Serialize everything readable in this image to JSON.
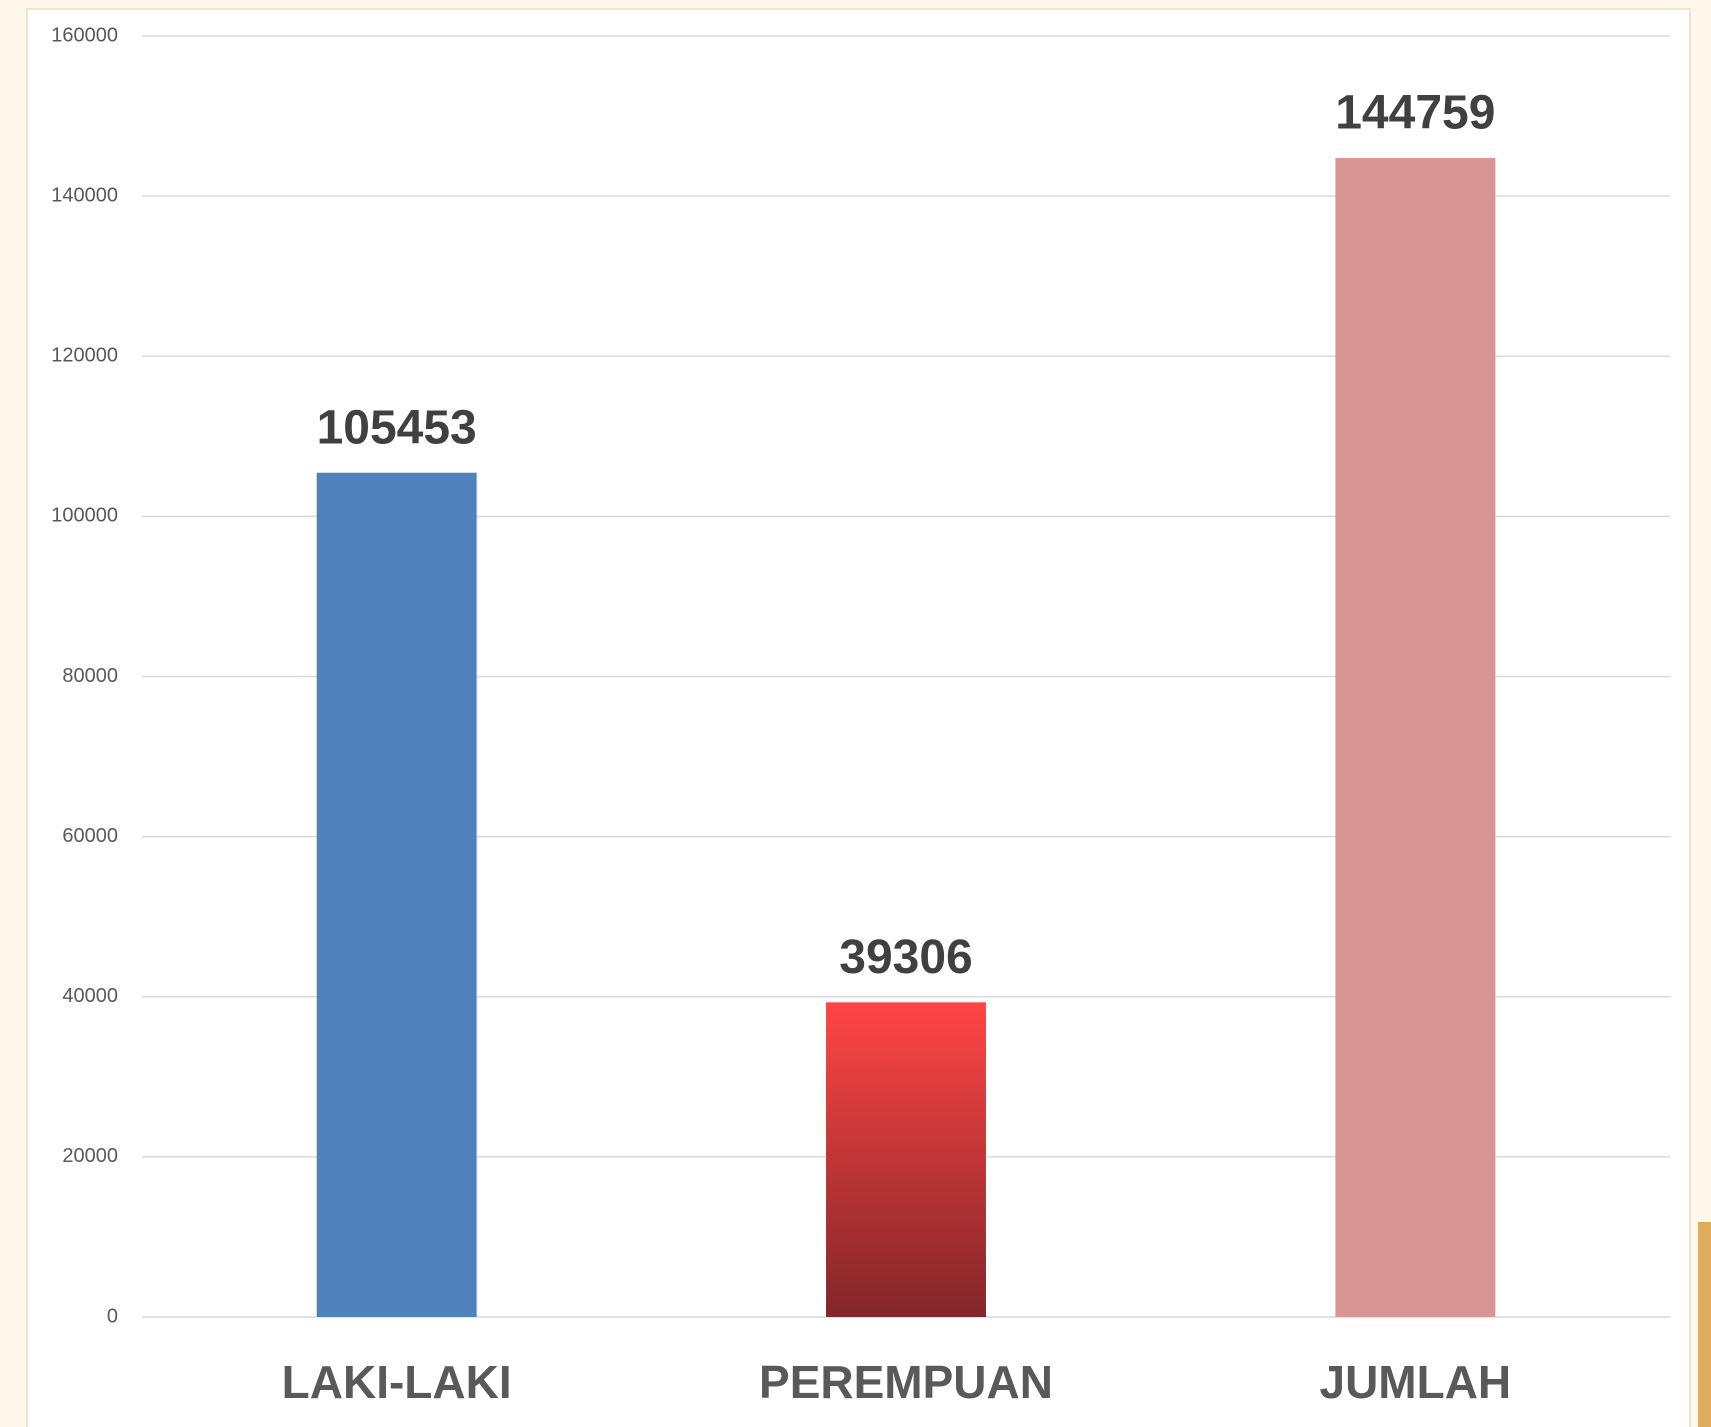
{
  "chart_data": {
    "type": "bar",
    "categories": [
      "LAKI-LAKI",
      "PEREMPUAN",
      "JUMLAH"
    ],
    "values": [
      105453,
      39306,
      144759
    ],
    "colors": [
      "#4f81bd",
      {
        "from": "#ff4545",
        "to": "#82262a"
      },
      "#d99594"
    ],
    "ylim": [
      0,
      160000
    ],
    "yticks": [
      0,
      20000,
      40000,
      60000,
      80000,
      100000,
      120000,
      140000,
      160000
    ],
    "grid": true
  }
}
